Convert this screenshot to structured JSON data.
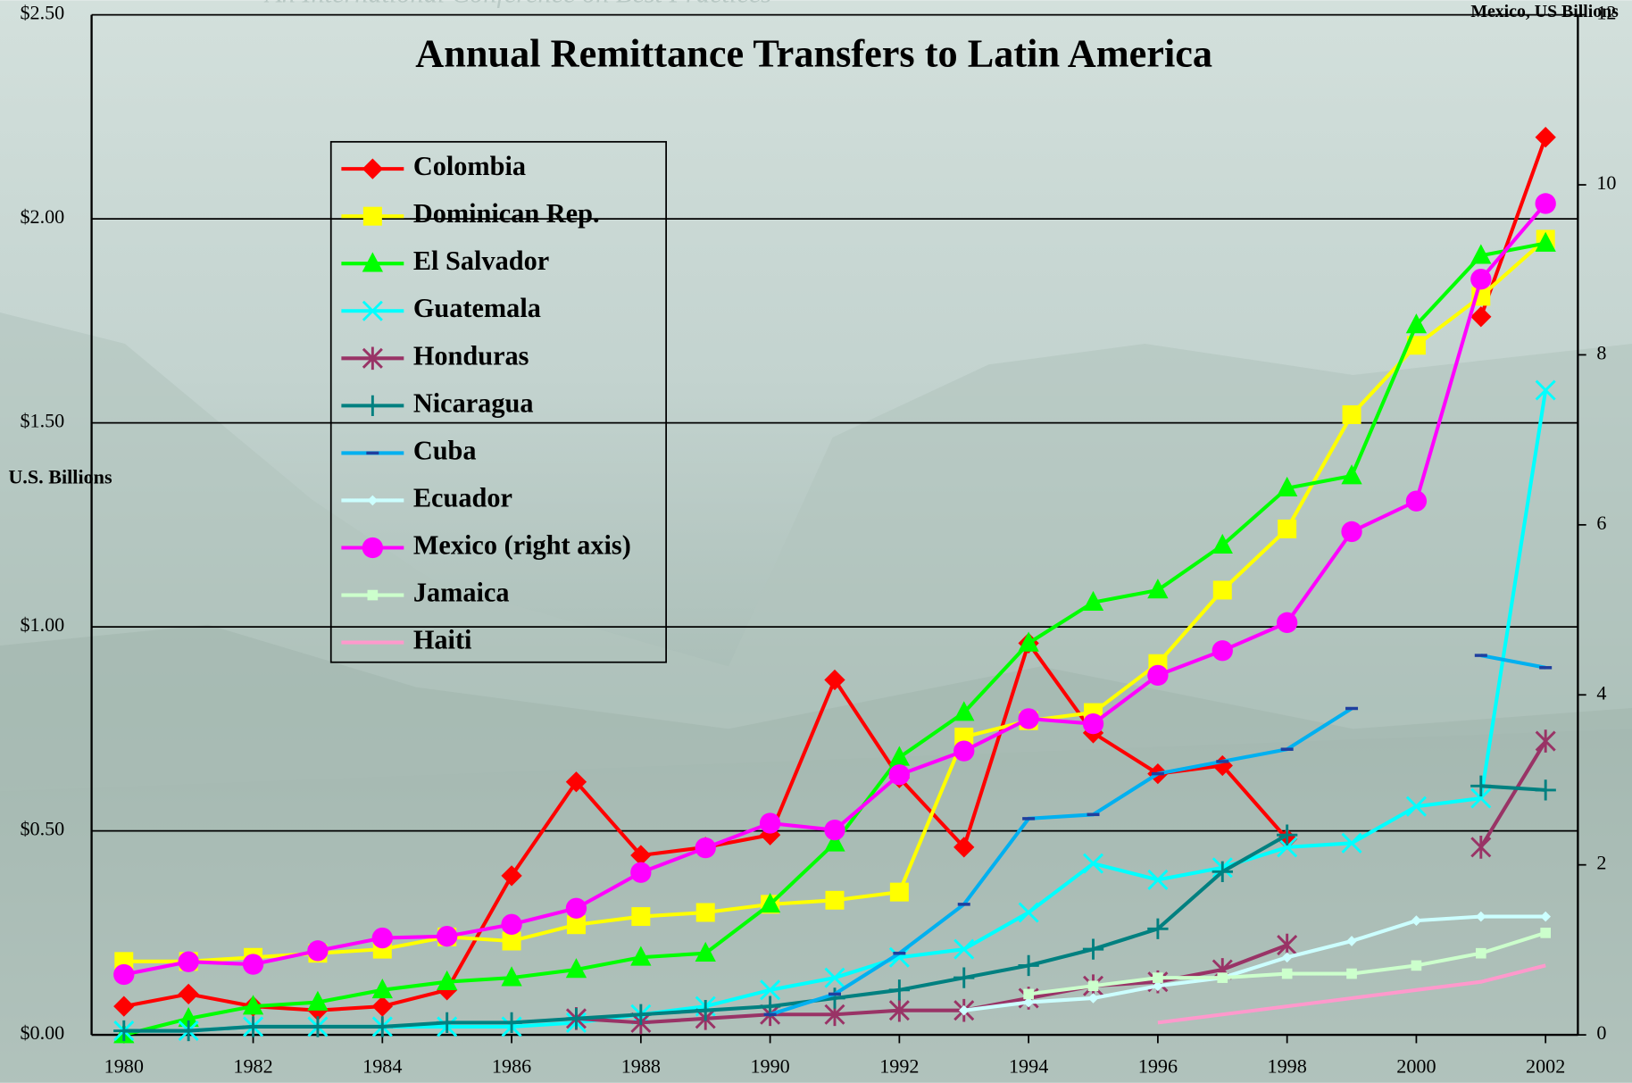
{
  "chart_data": {
    "type": "line",
    "title": "Annual Remittance Transfers to Latin America",
    "banner": "An International Conference on Best Practices",
    "ylabel": "U.S. Billions",
    "y2label": "Mexico, US Billions",
    "x": [
      1980,
      1981,
      1982,
      1983,
      1984,
      1985,
      1986,
      1987,
      1988,
      1989,
      1990,
      1991,
      1992,
      1993,
      1994,
      1995,
      1996,
      1997,
      1998,
      1999,
      2000,
      2001,
      2002
    ],
    "xlim": [
      1979.5,
      2002.5
    ],
    "xticks": [
      1980,
      1982,
      1984,
      1986,
      1988,
      1990,
      1992,
      1994,
      1996,
      1998,
      2000,
      2002
    ],
    "ylim": [
      0,
      2.5
    ],
    "yticks": [
      {
        "value": 0,
        "label": "$0.00"
      },
      {
        "value": 0.5,
        "label": "$0.50"
      },
      {
        "value": 1,
        "label": "$1.00"
      },
      {
        "value": 1.5,
        "label": "$1.50"
      },
      {
        "value": 2,
        "label": "$2.00"
      },
      {
        "value": 2.5,
        "label": "$2.50"
      }
    ],
    "y2lim": [
      0,
      12
    ],
    "y2ticks": [
      0,
      2,
      4,
      6,
      8,
      10,
      12
    ],
    "grid": true,
    "series": [
      {
        "name": "Colombia",
        "color": "#ff0000",
        "marker": "diamond",
        "values": [
          0.07,
          0.1,
          0.07,
          0.06,
          0.07,
          0.11,
          0.39,
          0.62,
          0.44,
          0.46,
          0.49,
          0.87,
          0.63,
          0.46,
          0.96,
          0.74,
          0.64,
          0.66,
          0.48,
          null,
          null,
          1.76,
          2.2
        ]
      },
      {
        "name": "Dominican Rep.",
        "color": "#ffff00",
        "marker": "square",
        "values": [
          0.18,
          0.18,
          0.19,
          0.2,
          0.21,
          0.24,
          0.23,
          0.27,
          0.29,
          0.3,
          0.32,
          0.33,
          0.35,
          0.73,
          0.77,
          0.79,
          0.91,
          1.09,
          1.24,
          1.52,
          1.69,
          1.81,
          1.95
        ]
      },
      {
        "name": "El Salvador",
        "color": "#00ff00",
        "marker": "triangle",
        "values": [
          0,
          0.04,
          0.07,
          0.08,
          0.11,
          0.13,
          0.14,
          0.16,
          0.19,
          0.2,
          0.32,
          0.47,
          0.68,
          0.79,
          0.96,
          1.06,
          1.09,
          1.2,
          1.34,
          1.37,
          1.74,
          1.91,
          1.94
        ]
      },
      {
        "name": "Guatemala",
        "color": "#00ffff",
        "marker": "x",
        "values": [
          0.01,
          0.01,
          0.02,
          0.02,
          0.02,
          0.02,
          0.02,
          0.03,
          0.05,
          0.07,
          0.11,
          0.14,
          0.19,
          0.21,
          0.3,
          0.42,
          0.38,
          0.41,
          0.46,
          0.47,
          0.56,
          0.58,
          1.58
        ]
      },
      {
        "name": "Honduras",
        "color": "#993366",
        "marker": "asterisk",
        "values": [
          null,
          null,
          null,
          null,
          null,
          null,
          null,
          0.04,
          0.03,
          0.04,
          0.05,
          0.05,
          0.06,
          0.06,
          0.09,
          0.12,
          0.13,
          0.16,
          0.22,
          null,
          null,
          0.46,
          0.72
        ]
      },
      {
        "name": "Nicaragua",
        "color": "#008080",
        "marker": "plus",
        "values": [
          0.01,
          0.01,
          0.02,
          0.02,
          0.02,
          0.03,
          0.03,
          0.04,
          0.05,
          0.06,
          0.07,
          0.09,
          0.11,
          0.14,
          0.17,
          0.21,
          0.26,
          0.4,
          0.49,
          null,
          null,
          0.61,
          0.6
        ]
      },
      {
        "name": "Cuba",
        "color": "#00b0f0",
        "marker": "dash",
        "values": [
          null,
          null,
          null,
          null,
          null,
          null,
          null,
          null,
          null,
          null,
          0.05,
          0.1,
          0.2,
          0.32,
          0.53,
          0.54,
          0.64,
          0.67,
          0.7,
          0.8,
          null,
          0.93,
          0.9
        ]
      },
      {
        "name": "Ecuador",
        "color": "#ccffff",
        "marker": "smalldiamond",
        "values": [
          null,
          null,
          null,
          null,
          null,
          null,
          null,
          null,
          null,
          null,
          null,
          null,
          null,
          0.06,
          0.08,
          0.09,
          0.12,
          0.14,
          0.19,
          0.23,
          0.28,
          0.29,
          0.29
        ]
      },
      {
        "name": "Mexico (right axis)",
        "color": "#ff00ff",
        "marker": "circle",
        "axis": "y2",
        "values": [
          0.71,
          0.86,
          0.83,
          0.99,
          1.14,
          1.16,
          1.3,
          1.49,
          1.91,
          2.2,
          2.49,
          2.41,
          3.06,
          3.34,
          3.72,
          3.66,
          4.23,
          4.52,
          4.85,
          5.92,
          6.28,
          8.89,
          9.78
        ]
      },
      {
        "name": "Jamaica",
        "color": "#ccffcc",
        "marker": "smallsquare",
        "values": [
          null,
          null,
          null,
          null,
          null,
          null,
          null,
          null,
          null,
          null,
          null,
          null,
          null,
          null,
          0.1,
          0.12,
          0.14,
          0.14,
          0.15,
          0.15,
          0.17,
          0.2,
          0.25
        ]
      },
      {
        "name": "Haiti",
        "color": "#ff99cc",
        "marker": "none",
        "values": [
          null,
          null,
          null,
          null,
          null,
          null,
          null,
          null,
          null,
          null,
          null,
          null,
          null,
          null,
          null,
          null,
          0.03,
          0.05,
          0.07,
          0.09,
          0.11,
          0.13,
          0.17
        ]
      }
    ]
  }
}
